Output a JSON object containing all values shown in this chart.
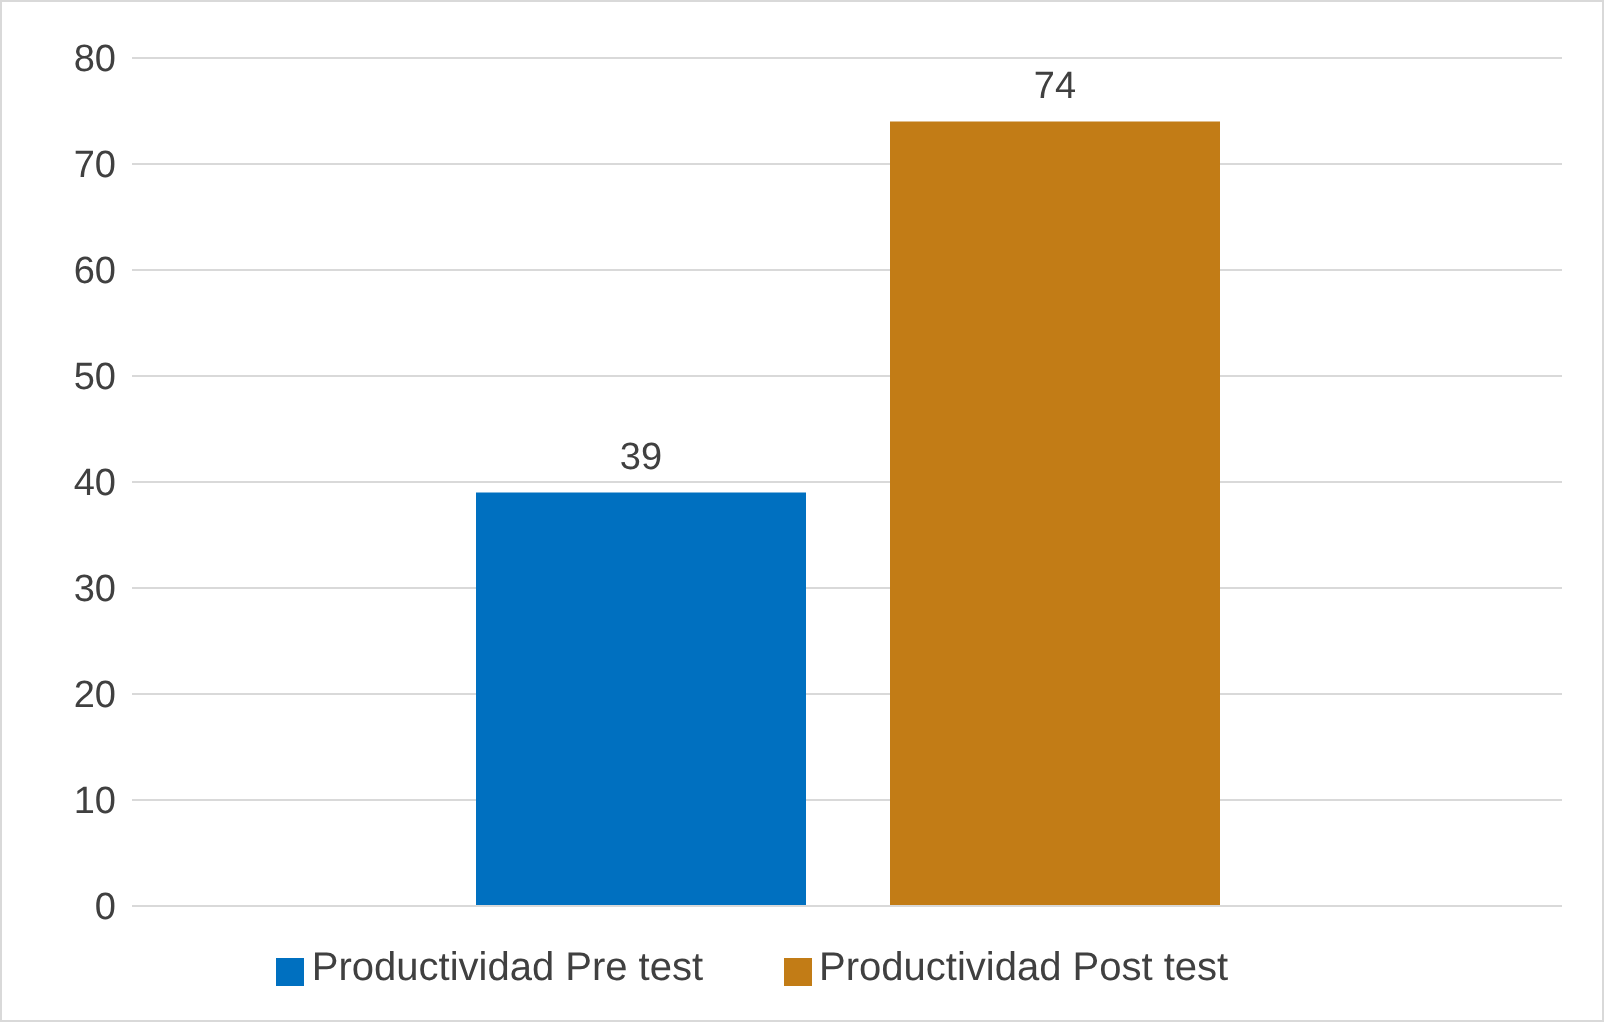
{
  "chart_data": {
    "type": "bar",
    "categories": [
      null
    ],
    "series": [
      {
        "name": "Productividad Pre test",
        "color": "#0070c0",
        "values": [
          39
        ]
      },
      {
        "name": "Productividad Post test",
        "color": "#c27c16",
        "values": [
          74
        ]
      }
    ],
    "ylim": [
      0,
      80
    ],
    "yticks": [
      0,
      10,
      20,
      30,
      40,
      50,
      60,
      70,
      80
    ],
    "grid": "y",
    "legend": "bottom",
    "data_labels": true,
    "tick_labels": "y"
  }
}
